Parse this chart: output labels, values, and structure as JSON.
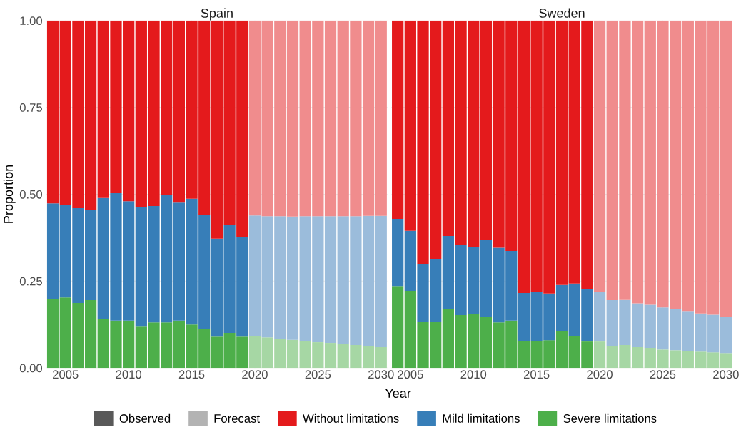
{
  "chart_data": [
    {
      "type": "bar",
      "stacked": true,
      "title": "Spain",
      "xlabel": "Year",
      "ylabel": "Proportion",
      "legend": "bottom",
      "grid": true,
      "x": [
        2004,
        2005,
        2006,
        2007,
        2008,
        2009,
        2010,
        2011,
        2012,
        2013,
        2014,
        2015,
        2016,
        2017,
        2018,
        2019,
        2020,
        2021,
        2022,
        2023,
        2024,
        2025,
        2026,
        2027,
        2028,
        2029,
        2030
      ],
      "xlim": [
        2003.5,
        2030.5
      ],
      "xticks": [
        2005,
        2010,
        2015,
        2020,
        2025,
        2030
      ],
      "ylim": [
        0,
        1
      ],
      "yticks": [
        {
          "value": 0,
          "label": "0.00"
        },
        {
          "value": 0.25,
          "label": "0.25"
        },
        {
          "value": 0.5,
          "label": "0.50"
        },
        {
          "value": 0.75,
          "label": "0.75"
        },
        {
          "value": 1,
          "label": "1.00"
        }
      ],
      "series": [
        {
          "name": "Observed",
          "color": "#595959",
          "values": [
            null,
            null,
            null,
            null,
            null,
            null,
            null,
            null,
            null,
            null,
            null,
            null,
            null,
            null,
            null,
            null,
            null,
            null,
            null,
            null,
            null,
            null,
            null,
            null,
            null,
            null,
            null
          ]
        },
        {
          "name": "Forecast",
          "color": "#b3b3b3",
          "values": [
            null,
            null,
            null,
            null,
            null,
            null,
            null,
            null,
            null,
            null,
            null,
            null,
            null,
            null,
            null,
            null,
            null,
            null,
            null,
            null,
            null,
            null,
            null,
            null,
            null,
            null,
            null
          ]
        },
        {
          "name": "Severe limitations",
          "color": "#4daf4a",
          "colors": [
            "#4daf4a",
            "#4daf4a",
            "#4daf4a",
            "#4daf4a",
            "#4daf4a",
            "#4daf4a",
            "#4daf4a",
            "#4daf4a",
            "#4daf4a",
            "#4daf4a",
            "#4daf4a",
            "#4daf4a",
            "#4daf4a",
            "#4daf4a",
            "#4daf4a",
            "#4daf4a",
            "#a6d7a4",
            "#a6d7a4",
            "#a6d7a4",
            "#a6d7a4",
            "#a6d7a4",
            "#a6d7a4",
            "#a6d7a4",
            "#a6d7a4",
            "#a6d7a4",
            "#a6d7a4",
            "#a6d7a4"
          ],
          "values": [
            0.199,
            0.203,
            0.187,
            0.195,
            0.14,
            0.136,
            0.136,
            0.121,
            0.131,
            0.131,
            0.136,
            0.125,
            0.113,
            0.09,
            0.101,
            0.09,
            0.092,
            0.088,
            0.084,
            0.081,
            0.078,
            0.074,
            0.072,
            0.068,
            0.066,
            0.062,
            0.06
          ]
        },
        {
          "name": "Mild limitations",
          "color": "#377eb8",
          "colors": [
            "#377eb8",
            "#377eb8",
            "#377eb8",
            "#377eb8",
            "#377eb8",
            "#377eb8",
            "#377eb8",
            "#377eb8",
            "#377eb8",
            "#377eb8",
            "#377eb8",
            "#377eb8",
            "#377eb8",
            "#377eb8",
            "#377eb8",
            "#377eb8",
            "#9bbcdb",
            "#9bbcdb",
            "#9bbcdb",
            "#9bbcdb",
            "#9bbcdb",
            "#9bbcdb",
            "#9bbcdb",
            "#9bbcdb",
            "#9bbcdb",
            "#9bbcdb",
            "#9bbcdb"
          ],
          "values": [
            0.275,
            0.265,
            0.273,
            0.259,
            0.349,
            0.367,
            0.344,
            0.341,
            0.335,
            0.366,
            0.34,
            0.362,
            0.328,
            0.282,
            0.312,
            0.288,
            0.347,
            0.349,
            0.353,
            0.355,
            0.359,
            0.363,
            0.365,
            0.369,
            0.371,
            0.376,
            0.378
          ]
        },
        {
          "name": "Without limitations",
          "color": "#e41a1c",
          "colors": [
            "#e41a1c",
            "#e41a1c",
            "#e41a1c",
            "#e41a1c",
            "#e41a1c",
            "#e41a1c",
            "#e41a1c",
            "#e41a1c",
            "#e41a1c",
            "#e41a1c",
            "#e41a1c",
            "#e41a1c",
            "#e41a1c",
            "#e41a1c",
            "#e41a1c",
            "#e41a1c",
            "#f08c8d",
            "#f08c8d",
            "#f08c8d",
            "#f08c8d",
            "#f08c8d",
            "#f08c8d",
            "#f08c8d",
            "#f08c8d",
            "#f08c8d",
            "#f08c8d",
            "#f08c8d"
          ],
          "values": [
            0.526,
            0.532,
            0.54,
            0.546,
            0.511,
            0.497,
            0.52,
            0.538,
            0.534,
            0.503,
            0.524,
            0.513,
            0.559,
            0.628,
            0.587,
            0.622,
            0.561,
            0.563,
            0.563,
            0.564,
            0.563,
            0.563,
            0.563,
            0.563,
            0.563,
            0.562,
            0.562
          ]
        }
      ]
    },
    {
      "type": "bar",
      "stacked": true,
      "title": "Sweden",
      "grid": true,
      "tick_labels": "x",
      "x": [
        2004,
        2005,
        2006,
        2007,
        2008,
        2009,
        2010,
        2011,
        2012,
        2013,
        2014,
        2015,
        2016,
        2017,
        2018,
        2019,
        2020,
        2021,
        2022,
        2023,
        2024,
        2025,
        2026,
        2027,
        2028,
        2029,
        2030
      ],
      "xlim": [
        2003.5,
        2030.5
      ],
      "xticks": [
        2005,
        2010,
        2015,
        2020,
        2025,
        2030
      ],
      "ylim": [
        0,
        1
      ],
      "yticks": [
        0,
        0.25,
        0.5,
        0.75,
        1
      ],
      "series": [
        {
          "colors": [
            "#4daf4a",
            "#4daf4a",
            "#4daf4a",
            "#4daf4a",
            "#4daf4a",
            "#4daf4a",
            "#4daf4a",
            "#4daf4a",
            "#4daf4a",
            "#4daf4a",
            "#4daf4a",
            "#4daf4a",
            "#4daf4a",
            "#4daf4a",
            "#4daf4a",
            "#4daf4a",
            "#a6d7a4",
            "#a6d7a4",
            "#a6d7a4",
            "#a6d7a4",
            "#a6d7a4",
            "#a6d7a4",
            "#a6d7a4",
            "#a6d7a4",
            "#a6d7a4",
            "#a6d7a4",
            "#a6d7a4"
          ],
          "values": [
            0.236,
            0.222,
            0.133,
            0.133,
            0.17,
            0.152,
            0.154,
            0.146,
            0.131,
            0.136,
            0.078,
            0.076,
            0.08,
            0.107,
            0.092,
            0.076,
            0.076,
            0.064,
            0.066,
            0.06,
            0.058,
            0.053,
            0.051,
            0.049,
            0.047,
            0.045,
            0.043
          ]
        },
        {
          "colors": [
            "#377eb8",
            "#377eb8",
            "#377eb8",
            "#377eb8",
            "#377eb8",
            "#377eb8",
            "#377eb8",
            "#377eb8",
            "#377eb8",
            "#377eb8",
            "#377eb8",
            "#377eb8",
            "#377eb8",
            "#377eb8",
            "#377eb8",
            "#377eb8",
            "#9bbcdb",
            "#9bbcdb",
            "#9bbcdb",
            "#9bbcdb",
            "#9bbcdb",
            "#9bbcdb",
            "#9bbcdb",
            "#9bbcdb",
            "#9bbcdb",
            "#9bbcdb",
            "#9bbcdb"
          ],
          "values": [
            0.193,
            0.173,
            0.167,
            0.18,
            0.21,
            0.203,
            0.193,
            0.222,
            0.215,
            0.201,
            0.138,
            0.142,
            0.134,
            0.132,
            0.151,
            0.152,
            0.142,
            0.131,
            0.13,
            0.126,
            0.124,
            0.121,
            0.118,
            0.115,
            0.11,
            0.108,
            0.104
          ]
        },
        {
          "colors": [
            "#e41a1c",
            "#e41a1c",
            "#e41a1c",
            "#e41a1c",
            "#e41a1c",
            "#e41a1c",
            "#e41a1c",
            "#e41a1c",
            "#e41a1c",
            "#e41a1c",
            "#e41a1c",
            "#e41a1c",
            "#e41a1c",
            "#e41a1c",
            "#e41a1c",
            "#e41a1c",
            "#f08c8d",
            "#f08c8d",
            "#f08c8d",
            "#f08c8d",
            "#f08c8d",
            "#f08c8d",
            "#f08c8d",
            "#f08c8d",
            "#f08c8d",
            "#f08c8d",
            "#f08c8d"
          ],
          "values": [
            0.571,
            0.605,
            0.7,
            0.687,
            0.62,
            0.645,
            0.653,
            0.632,
            0.654,
            0.663,
            0.784,
            0.782,
            0.786,
            0.761,
            0.757,
            0.772,
            0.782,
            0.805,
            0.804,
            0.814,
            0.818,
            0.826,
            0.831,
            0.836,
            0.843,
            0.847,
            0.853
          ]
        }
      ]
    }
  ]
}
